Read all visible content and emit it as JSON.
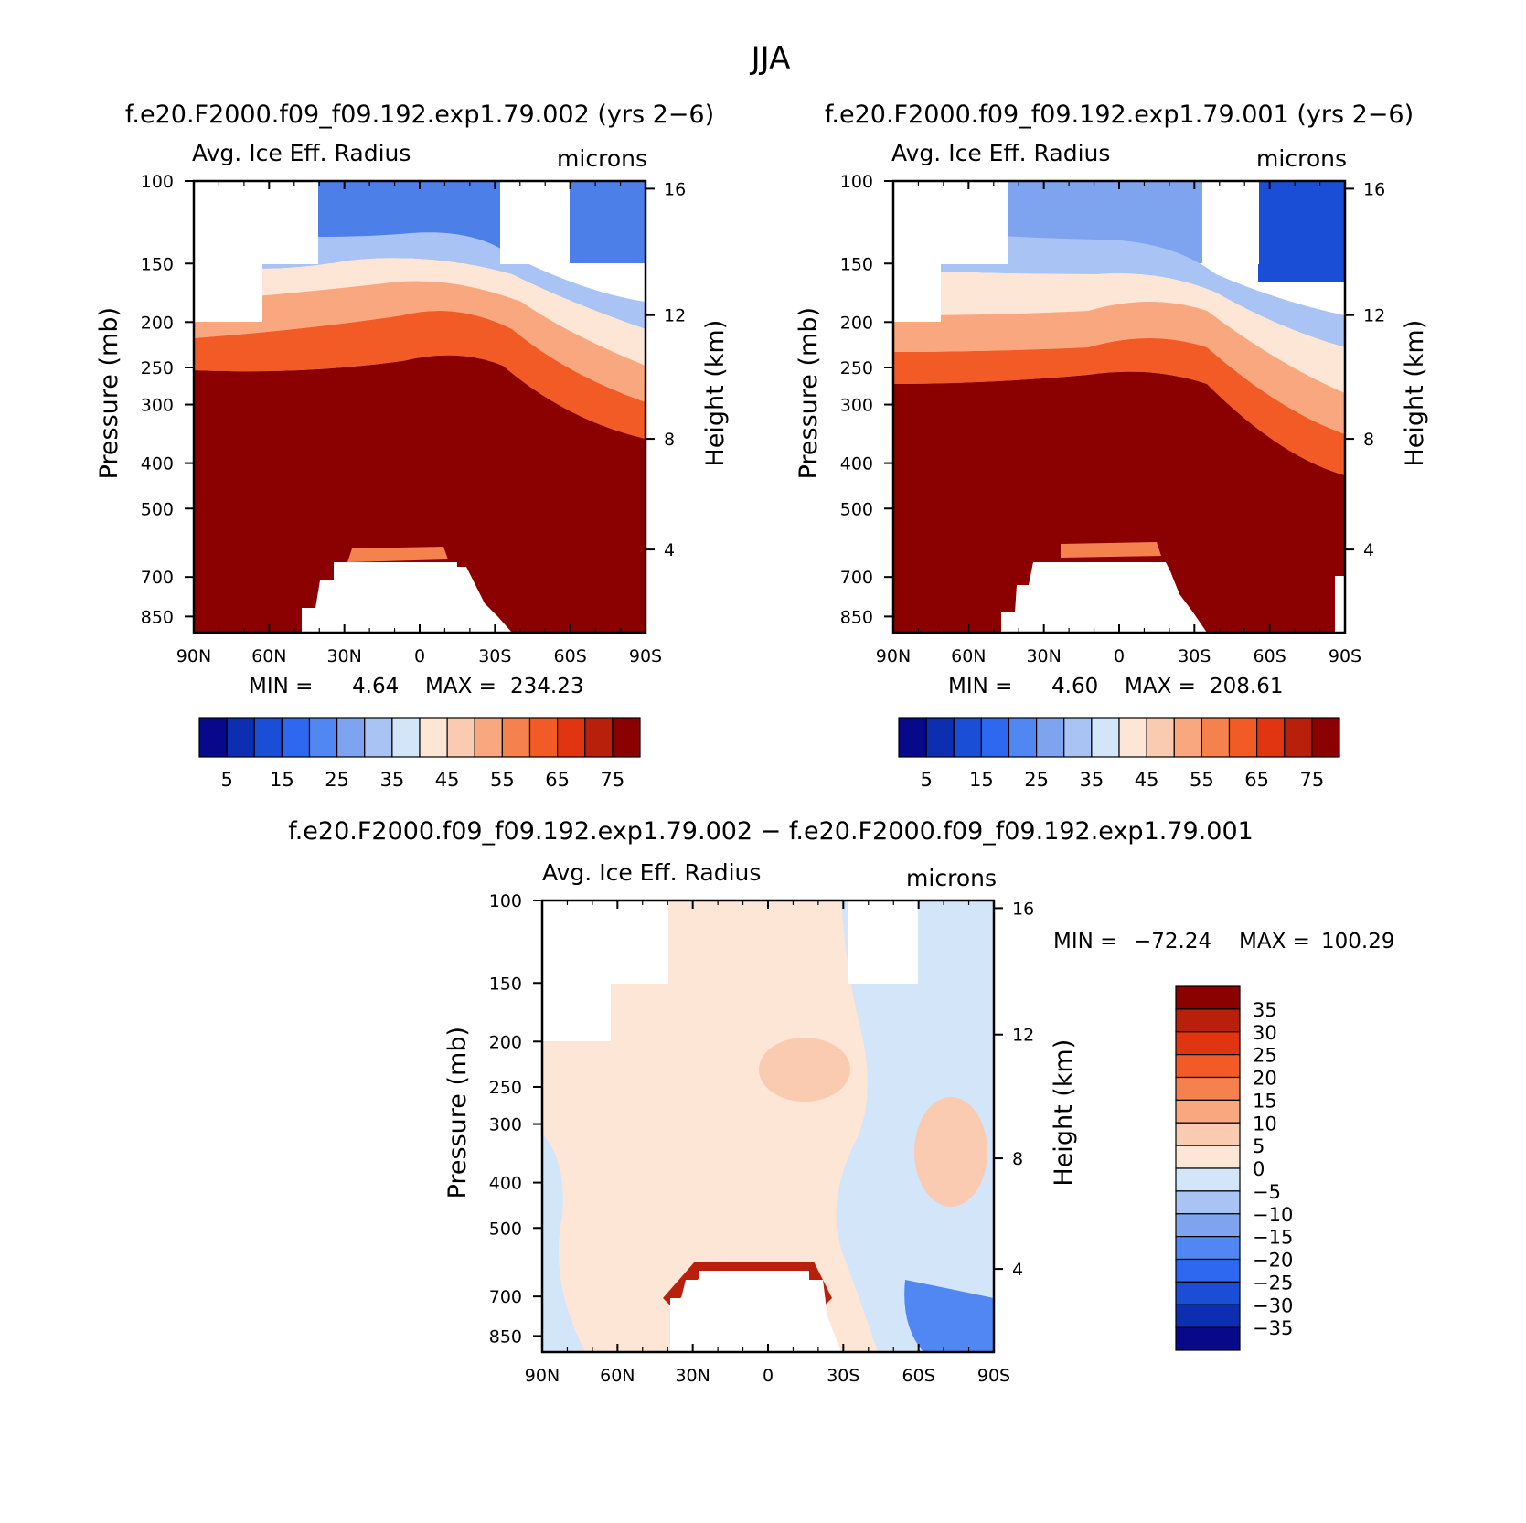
{
  "season": "JJA",
  "chart_data": [
    {
      "type": "heatmap",
      "title": "f.e20.F2000.f09_f09.192.exp1.79.002 (yrs 2−6)",
      "subtitle_left": "Avg. Ice Eff. Radius",
      "subtitle_right": "microns",
      "ylabel": "Pressure (mb)",
      "ylabel_right": "Height (km)",
      "x_ticks": [
        "90N",
        "60N",
        "30N",
        "0",
        "30S",
        "60S",
        "90S"
      ],
      "y_ticks": [
        "100",
        "150",
        "200",
        "250",
        "300",
        "400",
        "500",
        "700",
        "850"
      ],
      "y_ticks_right": [
        "16",
        "12",
        "8",
        "4"
      ],
      "stats": {
        "min_label": "MIN =",
        "min": "4.64",
        "max_label": "MAX =",
        "max": "234.23"
      },
      "colorbar_labels": [
        "5",
        "15",
        "25",
        "35",
        "45",
        "55",
        "65",
        "75"
      ]
    },
    {
      "type": "heatmap",
      "title": "f.e20.F2000.f09_f09.192.exp1.79.001 (yrs 2−6)",
      "subtitle_left": "Avg. Ice Eff. Radius",
      "subtitle_right": "microns",
      "ylabel": "Pressure (mb)",
      "ylabel_right": "Height (km)",
      "x_ticks": [
        "90N",
        "60N",
        "30N",
        "0",
        "30S",
        "60S",
        "90S"
      ],
      "y_ticks": [
        "100",
        "150",
        "200",
        "250",
        "300",
        "400",
        "500",
        "700",
        "850"
      ],
      "y_ticks_right": [
        "16",
        "12",
        "8",
        "4"
      ],
      "stats": {
        "min_label": "MIN =",
        "min": "4.60",
        "max_label": "MAX =",
        "max": "208.61"
      },
      "colorbar_labels": [
        "5",
        "15",
        "25",
        "35",
        "45",
        "55",
        "65",
        "75"
      ]
    },
    {
      "type": "heatmap",
      "title": "f.e20.F2000.f09_f09.192.exp1.79.002 − f.e20.F2000.f09_f09.192.exp1.79.001",
      "subtitle_left": "Avg. Ice Eff. Radius",
      "subtitle_right": "microns",
      "ylabel": "Pressure (mb)",
      "ylabel_right": "Height (km)",
      "x_ticks": [
        "90N",
        "60N",
        "30N",
        "0",
        "30S",
        "60S",
        "90S"
      ],
      "y_ticks": [
        "100",
        "150",
        "200",
        "250",
        "300",
        "400",
        "500",
        "700",
        "850"
      ],
      "y_ticks_right": [
        "16",
        "12",
        "8",
        "4"
      ],
      "stats": {
        "min_label": "MIN =",
        "min": "−72.24",
        "max_label": "MAX =",
        "max": "100.29"
      },
      "colorbar_labels": [
        "35",
        "30",
        "25",
        "20",
        "15",
        "10",
        "5",
        "0",
        "−5",
        "−10",
        "−15",
        "−20",
        "−25",
        "−30",
        "−35"
      ]
    }
  ],
  "colors": {
    "absolute_scale": [
      "#08088a",
      "#0b2fb0",
      "#1b4ed6",
      "#2f68f0",
      "#5087f2",
      "#7ea4f0",
      "#a9c3f4",
      "#d3e5f8",
      "#fde6d5",
      "#fbcbb1",
      "#f8a77f",
      "#f5814f",
      "#f25a26",
      "#e03510",
      "#b8200b",
      "#8b0000"
    ],
    "difference_scale": [
      "#8b0000",
      "#b8200b",
      "#e03510",
      "#f25a26",
      "#f5814f",
      "#f8a77f",
      "#fbcbb1",
      "#fde6d5",
      "#d3e5f8",
      "#a9c3f4",
      "#7ea4f0",
      "#5087f2",
      "#2f68f0",
      "#1b4ed6",
      "#0b2fb0",
      "#08088a"
    ]
  }
}
